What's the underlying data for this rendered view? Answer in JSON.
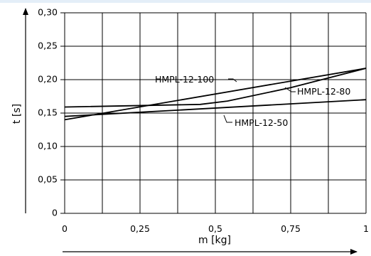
{
  "colors": {
    "background": "#ffffff",
    "top_band": "#e4eef8",
    "ink": "#000000"
  },
  "chart_data": {
    "type": "line",
    "title": "",
    "xlabel": "m [kg]",
    "ylabel": "t [s]",
    "xlim": [
      0,
      1
    ],
    "ylim": [
      0,
      0.3
    ],
    "grid": true,
    "x_ticks": [
      0,
      0.25,
      0.5,
      0.75,
      1
    ],
    "x_tick_labels": [
      "0",
      "0,25",
      "0,5",
      "0,75",
      "1"
    ],
    "y_ticks": [
      0,
      0.05,
      0.1,
      0.15,
      0.2,
      0.25,
      0.3
    ],
    "y_tick_labels": [
      "0",
      "0,05",
      "0,10",
      "0,15",
      "0,20",
      "0,25",
      "0,30"
    ],
    "series": [
      {
        "name": "HMPL-12-100",
        "x": [
          0,
          1
        ],
        "y": [
          0.14,
          0.217
        ]
      },
      {
        "name": "HMPL-12-80",
        "x": [
          0,
          0.45,
          0.54,
          0.75,
          1
        ],
        "y": [
          0.159,
          0.163,
          0.168,
          0.188,
          0.217
        ]
      },
      {
        "name": "HMPL-12-50",
        "x": [
          0,
          1
        ],
        "y": [
          0.145,
          0.17
        ]
      }
    ]
  }
}
